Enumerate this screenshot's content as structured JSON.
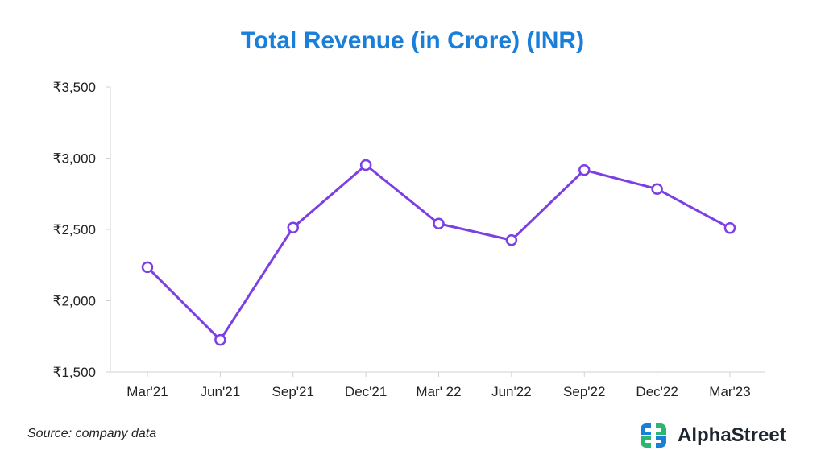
{
  "chart_data": {
    "type": "line",
    "title": "Total Revenue (in Crore) (INR)",
    "categories": [
      "Mar'21",
      "Jun'21",
      "Sep'21",
      "Dec'21",
      "Mar' 22",
      "Jun'22",
      "Sep'22",
      "Dec'22",
      "Mar'23"
    ],
    "series": [
      {
        "name": "Total Revenue",
        "values": [
          2235,
          1725,
          2513,
          2952,
          2541,
          2425,
          2917,
          2784,
          2510
        ]
      }
    ],
    "ylim": [
      1500,
      3500
    ],
    "yticks": [
      1500,
      2000,
      2500,
      3000,
      3500
    ],
    "ytick_labels": [
      "₹1,500",
      "₹2,000",
      "₹2,500",
      "₹3,000",
      "₹3,500"
    ],
    "xlabel": "",
    "ylabel": "",
    "grid": false
  },
  "footer": {
    "source": "Source: company data",
    "brand": "AlphaStreet"
  },
  "colors": {
    "line": "#7b3fe4",
    "title": "#1a7fd8",
    "logo_blue": "#1a7fd8",
    "logo_green": "#2bb673"
  },
  "icons": {
    "brand_logo": "alphastreet-logo-icon"
  }
}
